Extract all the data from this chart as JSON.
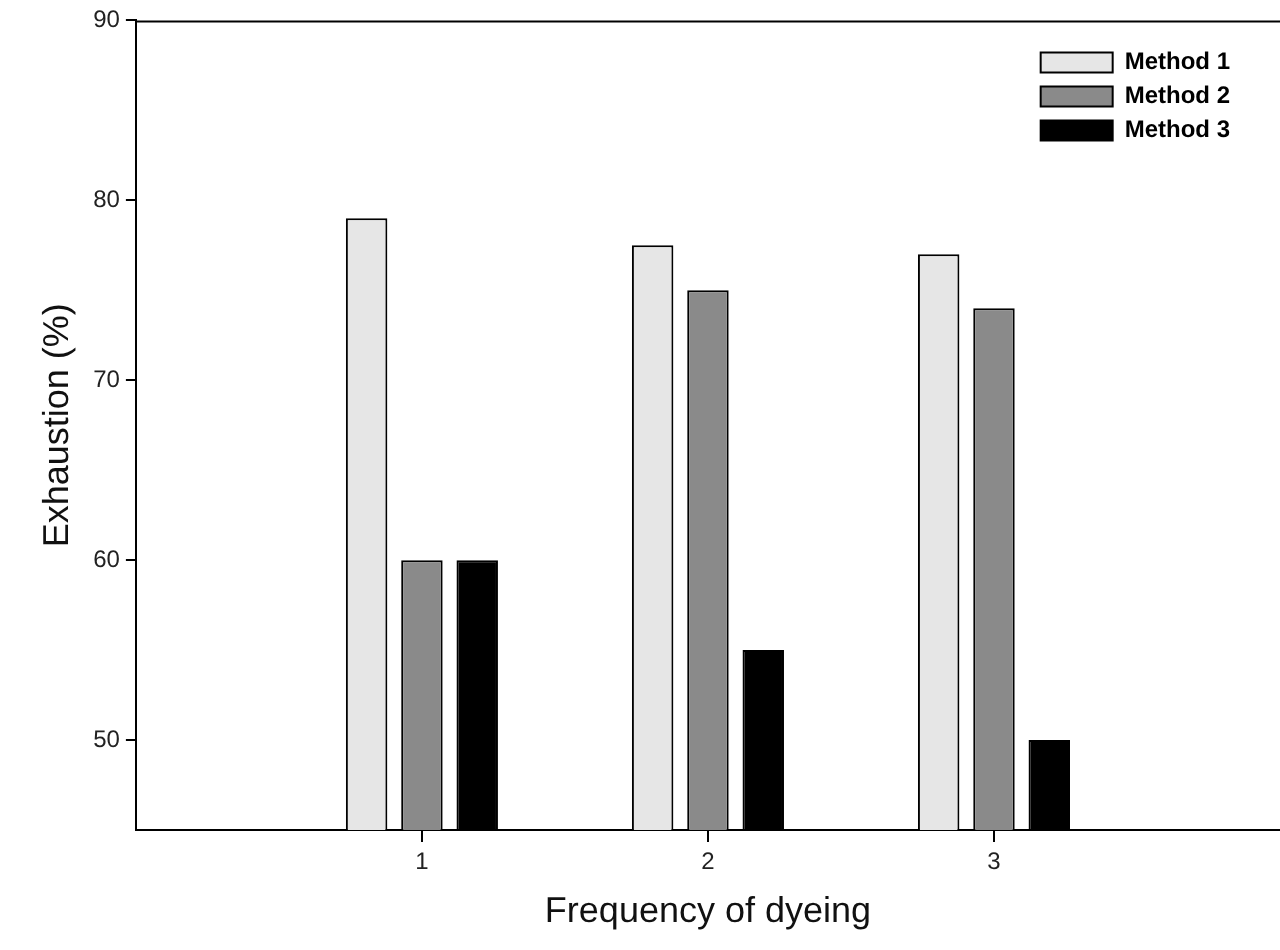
{
  "chart_data": {
    "type": "bar",
    "xlabel": "Frequency of dyeing",
    "ylabel": "Exhaustion (%)",
    "x": [
      1,
      2,
      3
    ],
    "xlim": [
      0,
      4
    ],
    "xticks": [
      1,
      2,
      3
    ],
    "ylim": [
      45,
      90
    ],
    "yticks": [
      50,
      60,
      70,
      80,
      90
    ],
    "series": [
      {
        "name": "Method 1",
        "color": "#e6e6e6",
        "values": [
          79,
          77.5,
          77
        ]
      },
      {
        "name": "Method 2",
        "color": "#8a8a8a",
        "values": [
          60,
          75,
          74
        ]
      },
      {
        "name": "Method 3",
        "color": "#000000",
        "values": [
          60,
          55,
          50
        ]
      }
    ],
    "grid": false,
    "legend": "top right"
  }
}
